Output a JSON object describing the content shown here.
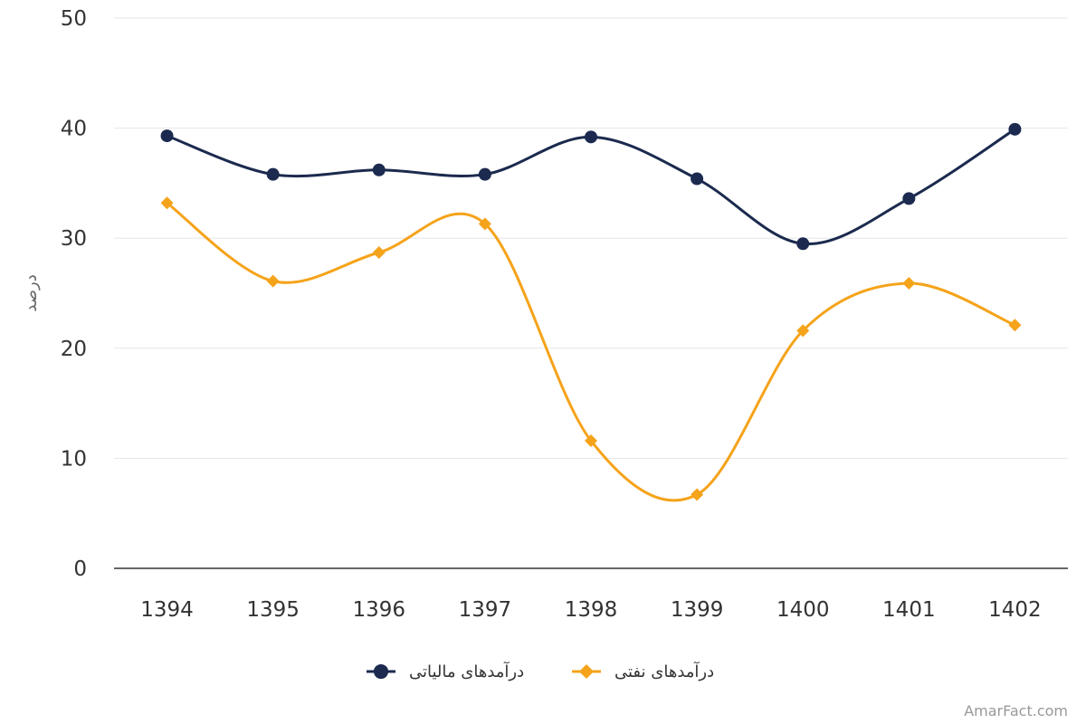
{
  "chart_data": {
    "type": "line",
    "x": [
      "1394",
      "1395",
      "1396",
      "1397",
      "1398",
      "1399",
      "1400",
      "1401",
      "1402"
    ],
    "series": [
      {
        "name": "درآمدهای مالیاتی",
        "color": "#1b2a4e",
        "marker": "circle",
        "values": [
          39.3,
          35.8,
          36.2,
          35.8,
          39.2,
          35.4,
          29.5,
          33.6,
          39.9
        ]
      },
      {
        "name": "درآمدهای نفتی",
        "color": "#f5a31a",
        "marker": "diamond",
        "values": [
          33.2,
          26.1,
          28.7,
          31.3,
          11.6,
          6.7,
          21.6,
          25.9,
          22.1
        ]
      }
    ],
    "ylabel": "درصد",
    "ylim": [
      0,
      50
    ],
    "yticks": [
      0,
      10,
      20,
      30,
      40,
      50
    ],
    "grid": true,
    "legend": "bottom"
  },
  "credit": "AmarFact.com"
}
